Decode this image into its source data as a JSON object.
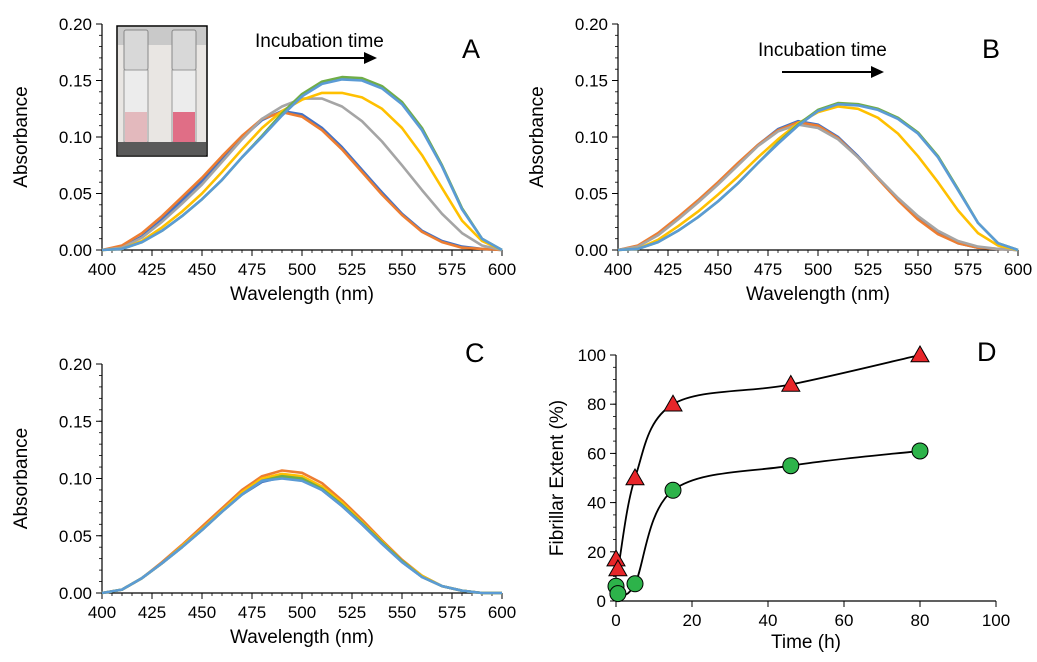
{
  "colors": {
    "blue": "#4472C4",
    "orange": "#ED7D31",
    "gray": "#A5A5A5",
    "yellow": "#FFC000",
    "green": "#70AD47",
    "lightblue": "#5B9BD5",
    "red": "#E8262A",
    "circle_green": "#2DB34A"
  },
  "chart_data": [
    {
      "panel": "A",
      "type": "line",
      "xlabel": "Wavelength (nm)",
      "ylabel": "Absorbance",
      "xlim": [
        400,
        600
      ],
      "ylim": [
        0,
        0.2
      ],
      "xticks": [
        "400",
        "425",
        "450",
        "475",
        "500",
        "525",
        "550",
        "575",
        "600"
      ],
      "yticks": [
        "0.00",
        "0.05",
        "0.10",
        "0.15",
        "0.20"
      ],
      "annotation": "Incubation time",
      "inset": "photo of two cuvettes (left: pale pink, right: pink)",
      "x": [
        400,
        410,
        420,
        430,
        440,
        450,
        460,
        470,
        480,
        490,
        500,
        510,
        520,
        530,
        540,
        550,
        560,
        570,
        580,
        590,
        600
      ],
      "series": [
        {
          "color": "blue",
          "values": [
            0,
            0.002,
            0.012,
            0.027,
            0.044,
            0.061,
            0.08,
            0.099,
            0.115,
            0.123,
            0.12,
            0.108,
            0.091,
            0.071,
            0.051,
            0.032,
            0.017,
            0.008,
            0.003,
            0.001,
            0
          ]
        },
        {
          "color": "orange",
          "values": [
            0,
            0.004,
            0.015,
            0.03,
            0.047,
            0.064,
            0.083,
            0.101,
            0.116,
            0.122,
            0.118,
            0.106,
            0.089,
            0.069,
            0.049,
            0.031,
            0.016,
            0.007,
            0.002,
            0.001,
            0
          ]
        },
        {
          "color": "gray",
          "values": [
            0,
            0.002,
            0.011,
            0.025,
            0.041,
            0.058,
            0.078,
            0.098,
            0.116,
            0.127,
            0.134,
            0.134,
            0.127,
            0.114,
            0.096,
            0.075,
            0.053,
            0.032,
            0.015,
            0.004,
            0
          ]
        },
        {
          "color": "yellow",
          "values": [
            0,
            0.001,
            0.008,
            0.02,
            0.034,
            0.05,
            0.069,
            0.089,
            0.108,
            0.123,
            0.133,
            0.139,
            0.139,
            0.135,
            0.125,
            0.108,
            0.084,
            0.055,
            0.026,
            0.008,
            0
          ]
        },
        {
          "color": "green",
          "values": [
            0,
            0.001,
            0.007,
            0.017,
            0.03,
            0.045,
            0.062,
            0.082,
            0.101,
            0.121,
            0.138,
            0.149,
            0.153,
            0.152,
            0.145,
            0.131,
            0.108,
            0.075,
            0.037,
            0.01,
            0
          ]
        },
        {
          "color": "lightblue",
          "values": [
            0,
            0.001,
            0.007,
            0.017,
            0.03,
            0.045,
            0.062,
            0.082,
            0.1,
            0.119,
            0.136,
            0.147,
            0.151,
            0.15,
            0.143,
            0.129,
            0.106,
            0.074,
            0.036,
            0.01,
            0
          ]
        }
      ]
    },
    {
      "panel": "B",
      "type": "line",
      "xlabel": "Wavelength (nm)",
      "ylabel": "Absorbance",
      "xlim": [
        400,
        600
      ],
      "ylim": [
        0,
        0.2
      ],
      "xticks": [
        "400",
        "425",
        "450",
        "475",
        "500",
        "525",
        "550",
        "575",
        "600"
      ],
      "yticks": [
        "0.00",
        "0.05",
        "0.10",
        "0.15",
        "0.20"
      ],
      "annotation": "Incubation time",
      "x": [
        400,
        410,
        420,
        430,
        440,
        450,
        460,
        470,
        480,
        490,
        500,
        510,
        520,
        530,
        540,
        550,
        560,
        570,
        580,
        590,
        600
      ],
      "series": [
        {
          "color": "blue",
          "values": [
            0,
            0.003,
            0.014,
            0.028,
            0.043,
            0.059,
            0.076,
            0.093,
            0.107,
            0.114,
            0.111,
            0.1,
            0.083,
            0.064,
            0.045,
            0.028,
            0.015,
            0.006,
            0.002,
            0.001,
            0
          ]
        },
        {
          "color": "orange",
          "values": [
            0,
            0.004,
            0.015,
            0.029,
            0.044,
            0.06,
            0.077,
            0.093,
            0.106,
            0.113,
            0.11,
            0.099,
            0.082,
            0.063,
            0.044,
            0.027,
            0.014,
            0.006,
            0.002,
            0.001,
            0
          ]
        },
        {
          "color": "gray",
          "values": [
            0,
            0.003,
            0.013,
            0.027,
            0.042,
            0.058,
            0.075,
            0.092,
            0.105,
            0.111,
            0.108,
            0.098,
            0.082,
            0.064,
            0.046,
            0.03,
            0.017,
            0.008,
            0.003,
            0.001,
            0
          ]
        },
        {
          "color": "yellow",
          "values": [
            0,
            0.001,
            0.009,
            0.021,
            0.034,
            0.049,
            0.065,
            0.082,
            0.098,
            0.112,
            0.122,
            0.127,
            0.125,
            0.117,
            0.103,
            0.083,
            0.06,
            0.035,
            0.015,
            0.004,
            0
          ]
        },
        {
          "color": "green",
          "values": [
            0,
            0.001,
            0.007,
            0.017,
            0.029,
            0.043,
            0.059,
            0.077,
            0.095,
            0.111,
            0.124,
            0.13,
            0.129,
            0.125,
            0.117,
            0.104,
            0.083,
            0.054,
            0.024,
            0.006,
            0
          ]
        },
        {
          "color": "lightblue",
          "values": [
            0,
            0.001,
            0.007,
            0.017,
            0.029,
            0.043,
            0.059,
            0.077,
            0.094,
            0.11,
            0.123,
            0.129,
            0.128,
            0.124,
            0.116,
            0.103,
            0.082,
            0.053,
            0.024,
            0.006,
            0
          ]
        }
      ]
    },
    {
      "panel": "C",
      "type": "line",
      "xlabel": "Wavelength (nm)",
      "ylabel": "Absorbance",
      "xlim": [
        400,
        600
      ],
      "ylim": [
        0,
        0.2
      ],
      "xticks": [
        "400",
        "425",
        "450",
        "475",
        "500",
        "525",
        "550",
        "575",
        "600"
      ],
      "yticks": [
        "0.00",
        "0.05",
        "0.10",
        "0.15",
        "0.20"
      ],
      "x": [
        400,
        410,
        420,
        430,
        440,
        450,
        460,
        470,
        480,
        490,
        500,
        510,
        520,
        530,
        540,
        550,
        560,
        570,
        580,
        590,
        600
      ],
      "series": [
        {
          "color": "blue",
          "values": [
            0,
            0.003,
            0.013,
            0.026,
            0.04,
            0.055,
            0.071,
            0.086,
            0.097,
            0.101,
            0.099,
            0.09,
            0.076,
            0.06,
            0.043,
            0.027,
            0.014,
            0.006,
            0.002,
            0,
            0
          ]
        },
        {
          "color": "orange",
          "values": [
            0,
            0.003,
            0.013,
            0.027,
            0.042,
            0.058,
            0.074,
            0.09,
            0.102,
            0.107,
            0.105,
            0.096,
            0.081,
            0.064,
            0.046,
            0.029,
            0.015,
            0.006,
            0.002,
            0,
            0
          ]
        },
        {
          "color": "gray",
          "values": [
            0,
            0.003,
            0.013,
            0.026,
            0.041,
            0.056,
            0.072,
            0.087,
            0.099,
            0.103,
            0.101,
            0.092,
            0.078,
            0.062,
            0.044,
            0.028,
            0.015,
            0.006,
            0.002,
            0,
            0
          ]
        },
        {
          "color": "yellow",
          "values": [
            0,
            0.003,
            0.013,
            0.026,
            0.041,
            0.056,
            0.072,
            0.088,
            0.1,
            0.104,
            0.102,
            0.093,
            0.079,
            0.062,
            0.045,
            0.028,
            0.015,
            0.006,
            0.002,
            0,
            0
          ]
        },
        {
          "color": "green",
          "values": [
            0,
            0.003,
            0.013,
            0.026,
            0.04,
            0.055,
            0.071,
            0.086,
            0.098,
            0.102,
            0.1,
            0.091,
            0.077,
            0.061,
            0.044,
            0.028,
            0.014,
            0.006,
            0.002,
            0,
            0
          ]
        },
        {
          "color": "lightblue",
          "values": [
            0,
            0.003,
            0.013,
            0.026,
            0.04,
            0.055,
            0.071,
            0.086,
            0.098,
            0.1,
            0.098,
            0.09,
            0.076,
            0.06,
            0.043,
            0.027,
            0.014,
            0.006,
            0.002,
            0,
            0
          ]
        }
      ]
    },
    {
      "panel": "D",
      "type": "scatter",
      "xlabel": "Time (h)",
      "ylabel": "Fibrillar Extent (%)",
      "xlim": [
        0,
        100
      ],
      "ylim": [
        0,
        100
      ],
      "xticks": [
        "0",
        "20",
        "40",
        "60",
        "80",
        "100"
      ],
      "yticks": [
        "0",
        "20",
        "40",
        "60",
        "80",
        "100"
      ],
      "series": [
        {
          "marker": "triangle",
          "color": "red",
          "x": [
            0,
            0.5,
            5,
            15,
            46,
            80
          ],
          "y": [
            17,
            13,
            50,
            80,
            88,
            100
          ]
        },
        {
          "marker": "circle",
          "color": "circle_green",
          "x": [
            0,
            0.5,
            5,
            15,
            46,
            80
          ],
          "y": [
            6,
            3,
            7,
            45,
            55,
            61
          ]
        }
      ]
    }
  ]
}
